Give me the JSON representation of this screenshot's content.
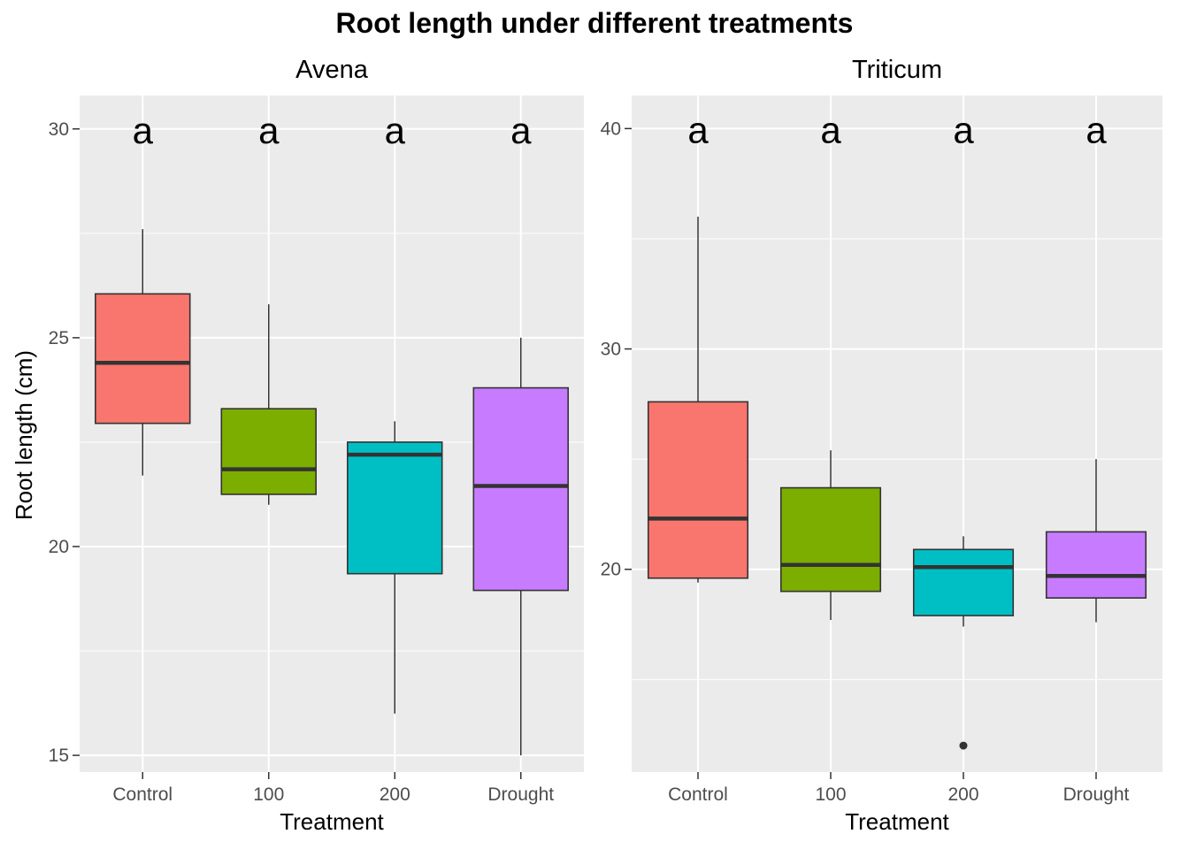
{
  "chart_data": {
    "type": "box",
    "title": "Root length under different treatments",
    "ylabel": "Root length (cm)",
    "xlabel": "Treatment",
    "categories": [
      "Control",
      "100",
      "200",
      "Drought"
    ],
    "fill_colors": [
      "#F8766D",
      "#7CAE00",
      "#00BFC4",
      "#C77CFF"
    ],
    "panel_background": "#EBEBEB",
    "grid": true,
    "legend": "none",
    "panels": [
      {
        "name": "Avena",
        "ylim": [
          14.6,
          30.8
        ],
        "yticks": [
          15,
          20,
          25,
          30
        ],
        "yticklabels": [
          "15",
          "20",
          "25",
          "30"
        ],
        "significance_labels": [
          "a",
          "a",
          "a",
          "a"
        ],
        "label_y": 30,
        "boxes": [
          {
            "category": "Control",
            "min": 21.7,
            "q1": 22.95,
            "median": 24.4,
            "q3": 26.05,
            "max": 27.6,
            "outliers": []
          },
          {
            "category": "100",
            "min": 21.0,
            "q1": 21.25,
            "median": 21.85,
            "q3": 23.3,
            "max": 25.8,
            "outliers": []
          },
          {
            "category": "200",
            "min": 16.0,
            "q1": 19.35,
            "median": 22.2,
            "q3": 22.5,
            "max": 23.0,
            "outliers": []
          },
          {
            "category": "Drought",
            "min": 15.0,
            "q1": 18.95,
            "median": 21.45,
            "q3": 23.8,
            "max": 25.0,
            "outliers": []
          }
        ]
      },
      {
        "name": "Triticum",
        "ylim": [
          10.8,
          41.5
        ],
        "yticks": [
          20,
          30,
          40
        ],
        "yticklabels": [
          "20",
          "30",
          "40"
        ],
        "significance_labels": [
          "a",
          "a",
          "a",
          "a"
        ],
        "label_y": 40,
        "boxes": [
          {
            "category": "Control",
            "min": 19.4,
            "q1": 19.6,
            "median": 22.3,
            "q3": 27.6,
            "max": 36.0,
            "outliers": []
          },
          {
            "category": "100",
            "min": 17.7,
            "q1": 19.0,
            "median": 20.2,
            "q3": 23.7,
            "max": 25.4,
            "outliers": []
          },
          {
            "category": "200",
            "min": 17.4,
            "q1": 17.9,
            "median": 20.1,
            "q3": 20.9,
            "max": 21.5,
            "outliers": [
              12.0
            ]
          },
          {
            "category": "Drought",
            "min": 17.6,
            "q1": 18.7,
            "median": 19.7,
            "q3": 21.7,
            "max": 25.0,
            "outliers": []
          }
        ]
      }
    ]
  }
}
